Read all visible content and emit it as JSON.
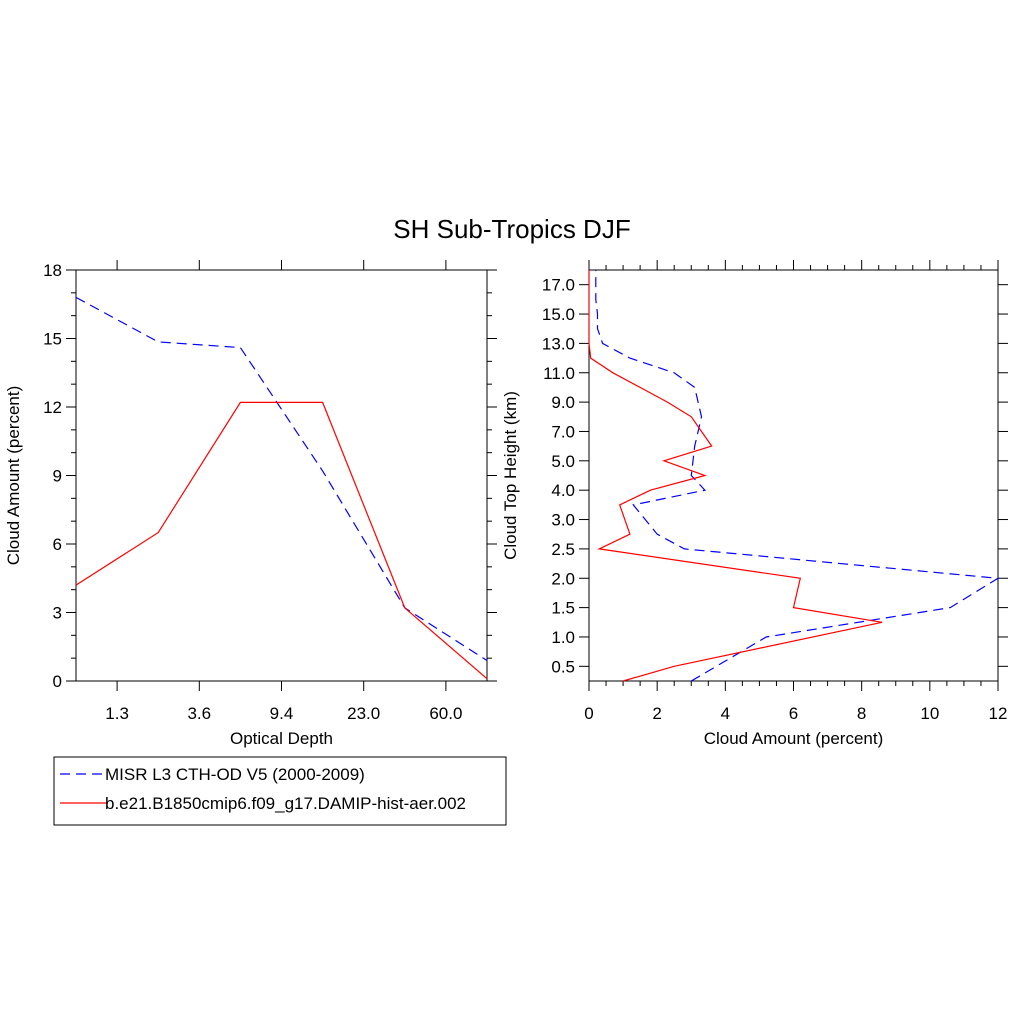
{
  "title": "SH Sub-Tropics DJF",
  "colors": {
    "obs": "#0000ff",
    "model": "#ff0000",
    "axis": "#000000"
  },
  "legend": {
    "items": [
      {
        "label": "MISR L3 CTH-OD V5 (2000-2009)",
        "color": "#0000ff",
        "dash": "dashed"
      },
      {
        "label": "b.e21.B1850cmip6.f09_g17.DAMIP-hist-aer.002",
        "color": "#ff0000",
        "dash": "solid"
      }
    ]
  },
  "chart_data": [
    {
      "type": "line",
      "xlabel": "Optical Depth",
      "ylabel": "Cloud Amount (percent)",
      "x_tick_labels": [
        "1.3",
        "3.6",
        "9.4",
        "23.0",
        "60.0"
      ],
      "y_ticks": [
        0,
        3,
        6,
        9,
        12,
        15,
        18
      ],
      "ylim": [
        0,
        18
      ],
      "x_index_range": [
        0,
        10
      ],
      "series": [
        {
          "name": "MISR L3 CTH-OD V5 (2000-2009)",
          "color": "#0000ff",
          "dash": "dashed",
          "x_index": [
            0,
            2,
            4,
            6,
            8,
            10
          ],
          "values": [
            16.8,
            14.85,
            14.6,
            9.2,
            3.2,
            0.9
          ]
        },
        {
          "name": "b.e21.B1850cmip6.f09_g17.DAMIP-hist-aer.002",
          "color": "#ff0000",
          "dash": "solid",
          "x_index": [
            0,
            2,
            4,
            6,
            8,
            10
          ],
          "values": [
            4.2,
            6.5,
            12.2,
            12.2,
            3.2,
            0.1
          ]
        }
      ]
    },
    {
      "type": "line",
      "xlabel": "Cloud Amount (percent)",
      "ylabel": "Cloud Top Height (km)",
      "x_ticks": [
        0,
        2,
        4,
        6,
        8,
        10,
        12
      ],
      "xlim": [
        0,
        12
      ],
      "y_tick_labels": [
        "0.5",
        "1.0",
        "1.5",
        "2.0",
        "2.5",
        "3.0",
        "4.0",
        "5.0",
        "7.0",
        "9.0",
        "11.0",
        "13.0",
        "15.0",
        "17.0"
      ],
      "y_index_range": [
        0,
        28
      ],
      "series": [
        {
          "name": "MISR L3 CTH-OD V5 (2000-2009)",
          "color": "#0000ff",
          "dash": "dashed",
          "y_index": [
            0,
            3,
            5,
            7,
            9,
            10,
            12,
            13,
            14,
            16,
            17,
            18,
            19,
            20,
            21,
            22,
            23,
            24,
            25,
            26,
            27,
            28
          ],
          "values": [
            3.0,
            5.2,
            10.6,
            12.0,
            2.8,
            2.0,
            1.3,
            3.4,
            3.0,
            3.1,
            3.2,
            3.3,
            3.2,
            3.1,
            2.5,
            1.2,
            0.4,
            0.25,
            0.25,
            0.2,
            0.2,
            0.2
          ]
        },
        {
          "name": "b.e21.B1850cmip6.f09_g17.DAMIP-hist-aer.002",
          "color": "#ff0000",
          "dash": "solid",
          "y_index": [
            0,
            1,
            4,
            5,
            7,
            9,
            10,
            12,
            13,
            14,
            15,
            16,
            18,
            19,
            20,
            21,
            22,
            23,
            24,
            25,
            26,
            27,
            28
          ],
          "values": [
            1.0,
            2.5,
            8.6,
            6.0,
            6.2,
            0.3,
            1.2,
            0.9,
            1.8,
            3.4,
            2.2,
            3.6,
            3.0,
            2.3,
            1.5,
            0.7,
            0.05,
            0.0,
            0.0,
            0.0,
            0.0,
            0.0,
            0.0
          ]
        }
      ]
    }
  ]
}
